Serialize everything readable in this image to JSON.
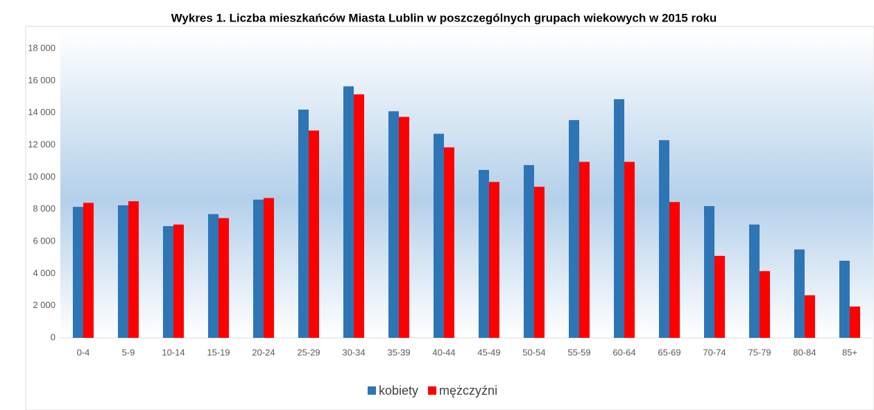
{
  "chart_data": {
    "type": "bar",
    "title": "Wykres 1. Liczba mieszkańców Miasta Lublin w poszczególnych grupach wiekowych w 2015 roku",
    "categories": [
      "0-4",
      "5-9",
      "10-14",
      "15-19",
      "20-24",
      "25-29",
      "30-34",
      "35-39",
      "40-44",
      "45-49",
      "50-54",
      "55-59",
      "60-64",
      "65-69",
      "70-74",
      "75-79",
      "80-84",
      "85+"
    ],
    "series": [
      {
        "name": "kobiety",
        "color": "#2e75b6",
        "values": [
          8150,
          8250,
          6950,
          7700,
          8600,
          14200,
          15650,
          14100,
          12700,
          10450,
          10750,
          13550,
          14850,
          12300,
          8200,
          7050,
          5500,
          4800
        ]
      },
      {
        "name": "mężczyźni",
        "color": "#ff0000",
        "values": [
          8400,
          8500,
          7050,
          7450,
          8700,
          12900,
          15150,
          13750,
          11850,
          9700,
          9400,
          10950,
          10950,
          8450,
          5100,
          4150,
          2650,
          1950
        ]
      }
    ],
    "ylim": [
      0,
      18000
    ],
    "yticks": [
      0,
      {
        "value": 2000,
        "label": "2 000"
      },
      {
        "value": 4000,
        "label": "4 000"
      },
      {
        "value": 6000,
        "label": "6 000"
      },
      {
        "value": 8000,
        "label": "8 000"
      },
      {
        "value": 10000,
        "label": "10 000"
      },
      {
        "value": 12000,
        "label": "12 000"
      },
      {
        "value": 14000,
        "label": "14 000"
      },
      {
        "value": 16000,
        "label": "16 000"
      },
      {
        "value": 18000,
        "label": "18 000"
      }
    ],
    "legend": "bottom"
  }
}
